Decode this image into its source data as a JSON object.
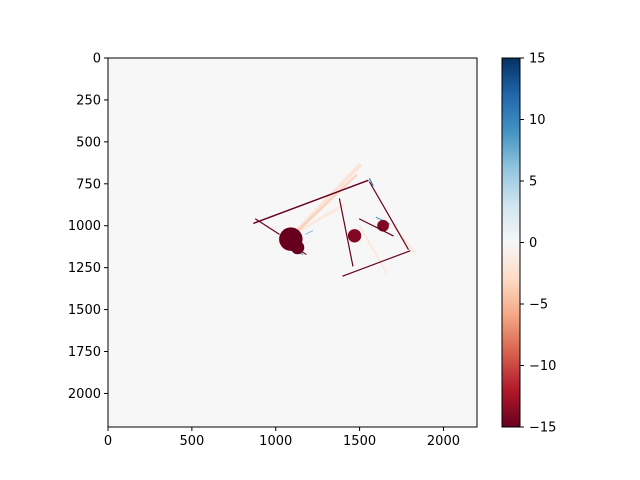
{
  "chart_data": {
    "type": "heatmap",
    "title": "",
    "xlabel": "",
    "ylabel": "",
    "xlim": [
      0,
      2200
    ],
    "ylim": [
      2200,
      0
    ],
    "x_ticks": [
      "0",
      "500",
      "1000",
      "1500",
      "2000"
    ],
    "y_ticks": [
      "0",
      "250",
      "500",
      "750",
      "1000",
      "1250",
      "1500",
      "1750",
      "2000"
    ],
    "colormap": "RdBu",
    "color_range": [
      -15,
      15
    ],
    "colorbar_ticks": [
      "15",
      "10",
      "5",
      "0",
      "−5",
      "−10",
      "−15"
    ],
    "background_value": 0,
    "structures": [
      {
        "kind": "beam",
        "from": [
          870,
          985
        ],
        "to": [
          1550,
          730
        ],
        "value": -15,
        "width": 14
      },
      {
        "kind": "beam",
        "from": [
          1400,
          1300
        ],
        "to": [
          1800,
          1150
        ],
        "value": -15,
        "width": 12
      },
      {
        "kind": "beam",
        "from": [
          1380,
          840
        ],
        "to": [
          1460,
          1240
        ],
        "value": -15,
        "width": 10
      },
      {
        "kind": "beam",
        "from": [
          1560,
          740
        ],
        "to": [
          1790,
          1140
        ],
        "value": -15,
        "width": 12
      },
      {
        "kind": "beam",
        "from": [
          1500,
          960
        ],
        "to": [
          1700,
          1060
        ],
        "value": -15,
        "width": 10
      },
      {
        "kind": "blob",
        "center": [
          1090,
          1080
        ],
        "radius": 70,
        "value": -15
      },
      {
        "kind": "blob",
        "center": [
          1470,
          1060
        ],
        "radius": 40,
        "value": -14
      },
      {
        "kind": "blob",
        "center": [
          1640,
          1000
        ],
        "radius": 35,
        "value": -14
      },
      {
        "kind": "blob",
        "center": [
          1130,
          1130
        ],
        "radius": 40,
        "value": -15
      },
      {
        "kind": "beam",
        "from": [
          880,
          960
        ],
        "to": [
          1020,
          1050
        ],
        "value": -15,
        "width": 6
      },
      {
        "kind": "beam",
        "from": [
          1070,
          1100
        ],
        "to": [
          1180,
          1170
        ],
        "value": -14,
        "width": 6
      },
      {
        "kind": "beam",
        "from": [
          1100,
          1060
        ],
        "to": [
          1500,
          640
        ],
        "value": -3,
        "width": 40
      },
      {
        "kind": "beam",
        "from": [
          1100,
          1060
        ],
        "to": [
          1480,
          700
        ],
        "value": -4,
        "width": 24
      },
      {
        "kind": "beam",
        "from": [
          1020,
          1100
        ],
        "to": [
          1400,
          880
        ],
        "value": -2,
        "width": 30
      },
      {
        "kind": "beam",
        "from": [
          1500,
          1000
        ],
        "to": [
          1660,
          1280
        ],
        "value": -2,
        "width": 20
      },
      {
        "kind": "beam",
        "from": [
          1700,
          1000
        ],
        "to": [
          1830,
          1160
        ],
        "value": -3,
        "width": 18
      },
      {
        "kind": "beam",
        "from": [
          1560,
          720
        ],
        "to": [
          1580,
          760
        ],
        "value": 10,
        "width": 8
      },
      {
        "kind": "beam",
        "from": [
          1600,
          950
        ],
        "to": [
          1680,
          990
        ],
        "value": 8,
        "width": 6
      },
      {
        "kind": "beam",
        "from": [
          1100,
          1150
        ],
        "to": [
          1160,
          1170
        ],
        "value": 8,
        "width": 6
      },
      {
        "kind": "beam",
        "from": [
          1180,
          1050
        ],
        "to": [
          1220,
          1030
        ],
        "value": 6,
        "width": 5
      }
    ]
  }
}
